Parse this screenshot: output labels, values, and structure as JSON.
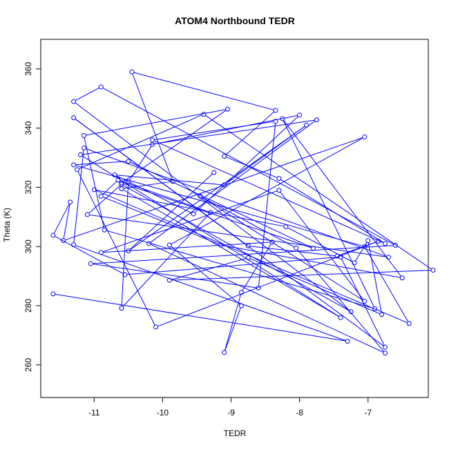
{
  "chart_data": {
    "type": "line",
    "title": "ATOM4 Northbound TEDR",
    "xlabel": "TEDR",
    "ylabel": "Theta (K)",
    "xlim": [
      -11.78,
      -6.12
    ],
    "ylim": [
      249,
      370
    ],
    "xticks": [
      -11,
      -10,
      -9,
      -8,
      -7
    ],
    "yticks": [
      260,
      280,
      300,
      320,
      340,
      360
    ],
    "xtick_labels": [
      "-11",
      "-10",
      "-9",
      "-8",
      "-7"
    ],
    "ytick_labels": [
      "260",
      "280",
      "300",
      "320",
      "340",
      "360"
    ],
    "grid": false,
    "legend": "none",
    "colors": {
      "series": "#0000ff",
      "axes": "#000000",
      "background": "#ffffff"
    },
    "series": [
      {
        "marker": "open-circle",
        "points": [
          [
            -11.6,
            284.0
          ],
          [
            -7.3,
            268.0
          ],
          [
            -11.3,
            300.6
          ],
          [
            -11.15,
            333.3
          ],
          [
            -6.7,
            296.4
          ],
          [
            -11.1,
            310.8
          ],
          [
            -10.6,
            321.0
          ],
          [
            -7.25,
            278.0
          ],
          [
            -11.3,
            349.0
          ],
          [
            -10.9,
            353.9
          ],
          [
            -6.6,
            300.4
          ],
          [
            -11.05,
            294.2
          ],
          [
            -8.6,
            286.0
          ],
          [
            -8.35,
            342.3
          ],
          [
            -10.15,
            336.0
          ],
          [
            -6.75,
            301.0
          ],
          [
            -8.3,
            323.0
          ],
          [
            -9.1,
            330.5
          ],
          [
            -8.35,
            346.0
          ],
          [
            -10.45,
            359.0
          ],
          [
            -9.85,
            322.0
          ],
          [
            -10.6,
            319.5
          ],
          [
            -7.4,
            276.0
          ],
          [
            -11.2,
            331.0
          ],
          [
            -7.75,
            342.8
          ],
          [
            -10.2,
            301.0
          ],
          [
            -6.75,
            264.0
          ],
          [
            -8.05,
            299.5
          ],
          [
            -9.45,
            317.0
          ],
          [
            -7.05,
            281.5
          ],
          [
            -8.3,
            319.0
          ],
          [
            -10.9,
            298.0
          ],
          [
            -8.4,
            301.5
          ],
          [
            -8.85,
            284.5
          ],
          [
            -9.1,
            264.2
          ],
          [
            -8.85,
            280.0
          ],
          [
            -9.9,
            300.5
          ],
          [
            -7.05,
            337.0
          ],
          [
            -11.45,
            302.0
          ],
          [
            -11.35,
            315.0
          ],
          [
            -11.6,
            303.8
          ],
          [
            -10.55,
            290.5
          ],
          [
            -7.4,
            296.5
          ],
          [
            -6.75,
            266.0
          ],
          [
            -11.3,
            343.5
          ],
          [
            -8.75,
            300.2
          ],
          [
            -7.45,
            296.8
          ],
          [
            -6.85,
            301.8
          ],
          [
            -10.1,
            272.8
          ],
          [
            -11.25,
            326.0
          ],
          [
            -9.4,
            344.7
          ],
          [
            -6.05,
            292.0
          ],
          [
            -9.9,
            288.6
          ],
          [
            -8.75,
            296.2
          ],
          [
            -6.8,
            277.0
          ],
          [
            -7.0,
            302.0
          ],
          [
            -7.2,
            294.5
          ],
          [
            -8.2,
            306.7
          ],
          [
            -11.0,
            319.2
          ],
          [
            -6.4,
            274.0
          ],
          [
            -7.05,
            300.0
          ],
          [
            -11.3,
            327.6
          ],
          [
            -10.5,
            328.8
          ],
          [
            -7.8,
            299.4
          ],
          [
            -10.6,
            321.5
          ],
          [
            -9.05,
            346.4
          ],
          [
            -11.15,
            337.5
          ],
          [
            -10.85,
            305.6
          ],
          [
            -6.9,
            279.0
          ],
          [
            -8.25,
            343.2
          ],
          [
            -6.5,
            289.4
          ],
          [
            -9.15,
            300.5
          ],
          [
            -10.9,
            317.0
          ],
          [
            -10.65,
            322.5
          ],
          [
            -9.3,
            311.5
          ],
          [
            -10.6,
            279.2
          ],
          [
            -10.5,
            321.8
          ],
          [
            -10.15,
            334.5
          ],
          [
            -8.0,
            344.4
          ],
          [
            -9.55,
            311.0
          ],
          [
            -10.7,
            324.2
          ],
          [
            -9.1,
            320.8
          ],
          [
            -7.9,
            341.0
          ],
          [
            -10.5,
            298.5
          ],
          [
            -9.25,
            325.0
          ]
        ]
      }
    ]
  }
}
